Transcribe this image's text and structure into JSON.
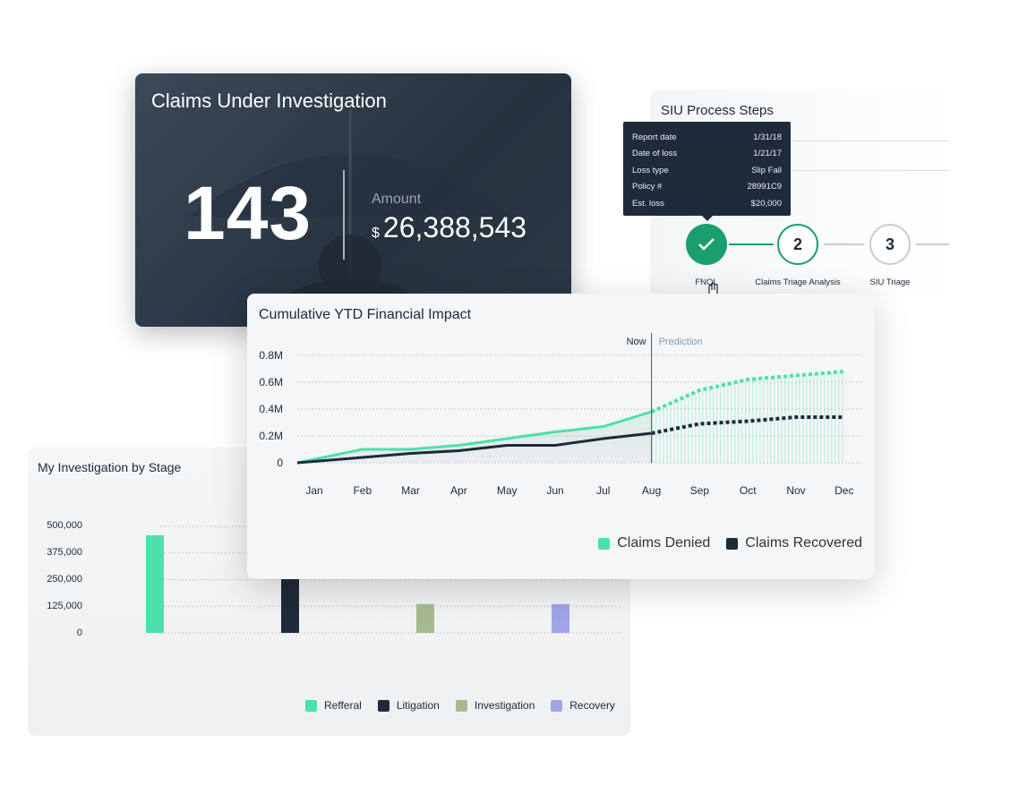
{
  "kpi_card": {
    "title": "Claims Under Investigation",
    "count": "143",
    "amount_label": "Amount",
    "currency": "$",
    "amount": "26,388,543"
  },
  "siu_card": {
    "title": "SIU Process Steps",
    "tooltip": [
      {
        "label": "Report date",
        "value": "1/31/18"
      },
      {
        "label": "Date of loss",
        "value": "1/21/17"
      },
      {
        "label": "Loss type",
        "value": "Slip Fall"
      },
      {
        "label": "Policy #",
        "value": "28991C9"
      },
      {
        "label": "Est. loss",
        "value": "$20,000"
      }
    ],
    "steps": [
      {
        "number": "",
        "label": "FNOL",
        "state": "completed",
        "icon": "check-icon"
      },
      {
        "number": "2",
        "label": "Claims Triage Analysis",
        "state": "active"
      },
      {
        "number": "3",
        "label": "SIU Triage",
        "state": "pending"
      }
    ],
    "colors": {
      "completed": "#1a9e6e",
      "active": "#1a9e6e",
      "pending": "#c8cdd2"
    }
  },
  "chart_data": [
    {
      "type": "line",
      "title": "Cumulative YTD Financial Impact",
      "categories": [
        "Jan",
        "Feb",
        "Mar",
        "Apr",
        "May",
        "Jun",
        "Jul",
        "Aug",
        "Sep",
        "Oct",
        "Nov",
        "Dec"
      ],
      "y_ticks": [
        "0",
        "0.2M",
        "0.4M",
        "0.6M",
        "0.8M"
      ],
      "ylim": [
        0,
        0.8
      ],
      "y_unit": "M",
      "now_label": "Now",
      "prediction_label": "Prediction",
      "now_index": 7,
      "grid": true,
      "legend_position": "bottom-right",
      "series": [
        {
          "name": "Claims Denied",
          "color": "#4de0aa",
          "values": [
            0,
            0.1,
            0.1,
            0.13,
            0.18,
            0.23,
            0.27,
            0.38,
            0.54,
            0.62,
            0.65,
            0.68
          ]
        },
        {
          "name": "Claims Recovered",
          "color": "#1e2a38",
          "values": [
            0,
            0.04,
            0.07,
            0.09,
            0.13,
            0.13,
            0.18,
            0.22,
            0.29,
            0.31,
            0.34,
            0.34
          ]
        }
      ]
    },
    {
      "type": "bar",
      "title": "My Investigation by Stage",
      "categories": [
        "Refferal",
        "Litigation",
        "Investigation",
        "Recovery"
      ],
      "values": [
        458000,
        300000,
        135000,
        135000
      ],
      "colors": [
        "#4de0aa",
        "#1f2b38",
        "#a7ba8f",
        "#9fa4e8"
      ],
      "y_ticks": [
        "0",
        "125,000",
        "250,000",
        "375,000",
        "500,000"
      ],
      "ylim": [
        0,
        500000
      ],
      "grid": true,
      "legend_position": "bottom-right"
    }
  ]
}
